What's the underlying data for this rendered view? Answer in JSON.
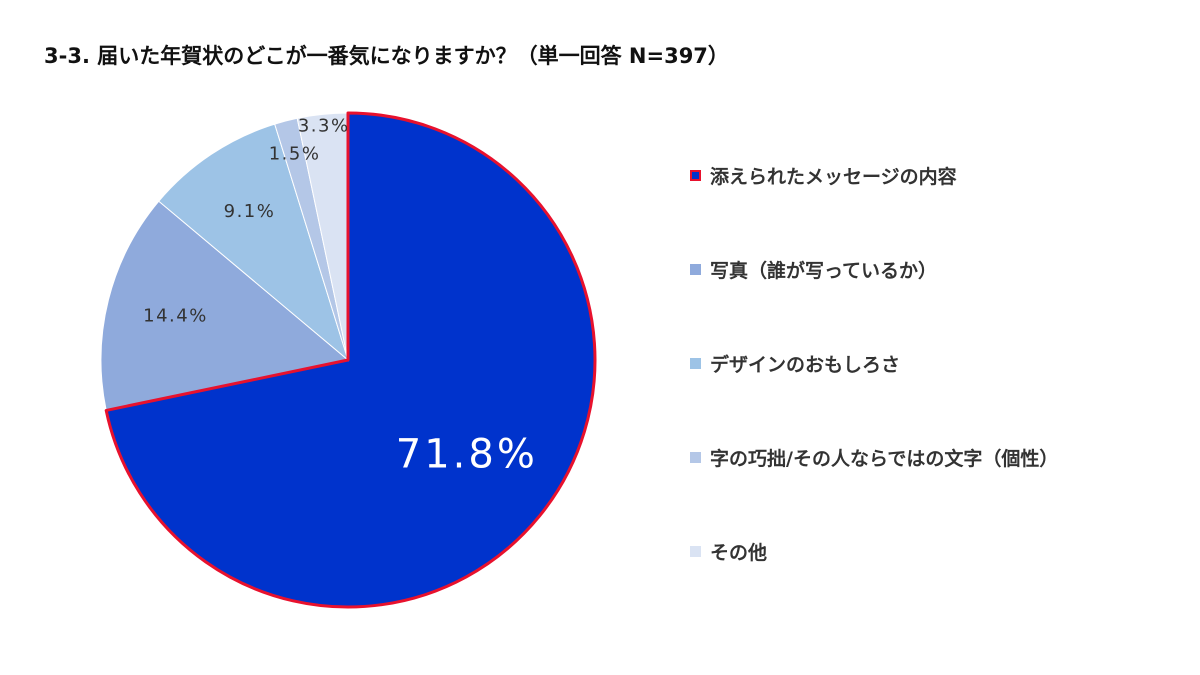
{
  "chart_data": {
    "type": "pie",
    "title": "3-3. 届いた年賀状のどこが一番気になりますか？（単一回答 N=397）",
    "categories": [
      "添えられたメッセージの内容",
      "写真（誰が写っているか）",
      "デザインのおもしろさ",
      "字の巧拙/その人ならではの文字（個性）",
      "その他"
    ],
    "values": [
      71.8,
      14.4,
      9.1,
      1.5,
      3.3
    ],
    "labels": [
      "71.8%",
      "14.4%",
      "9.1%",
      "1.5%",
      "3.3%"
    ],
    "colors": [
      "#0033cc",
      "#8faadc",
      "#9dc3e6",
      "#b4c7e7",
      "#dae3f3"
    ],
    "highlight_color": "#e8112d",
    "highlighted_index": 0,
    "legend_position": "right"
  }
}
